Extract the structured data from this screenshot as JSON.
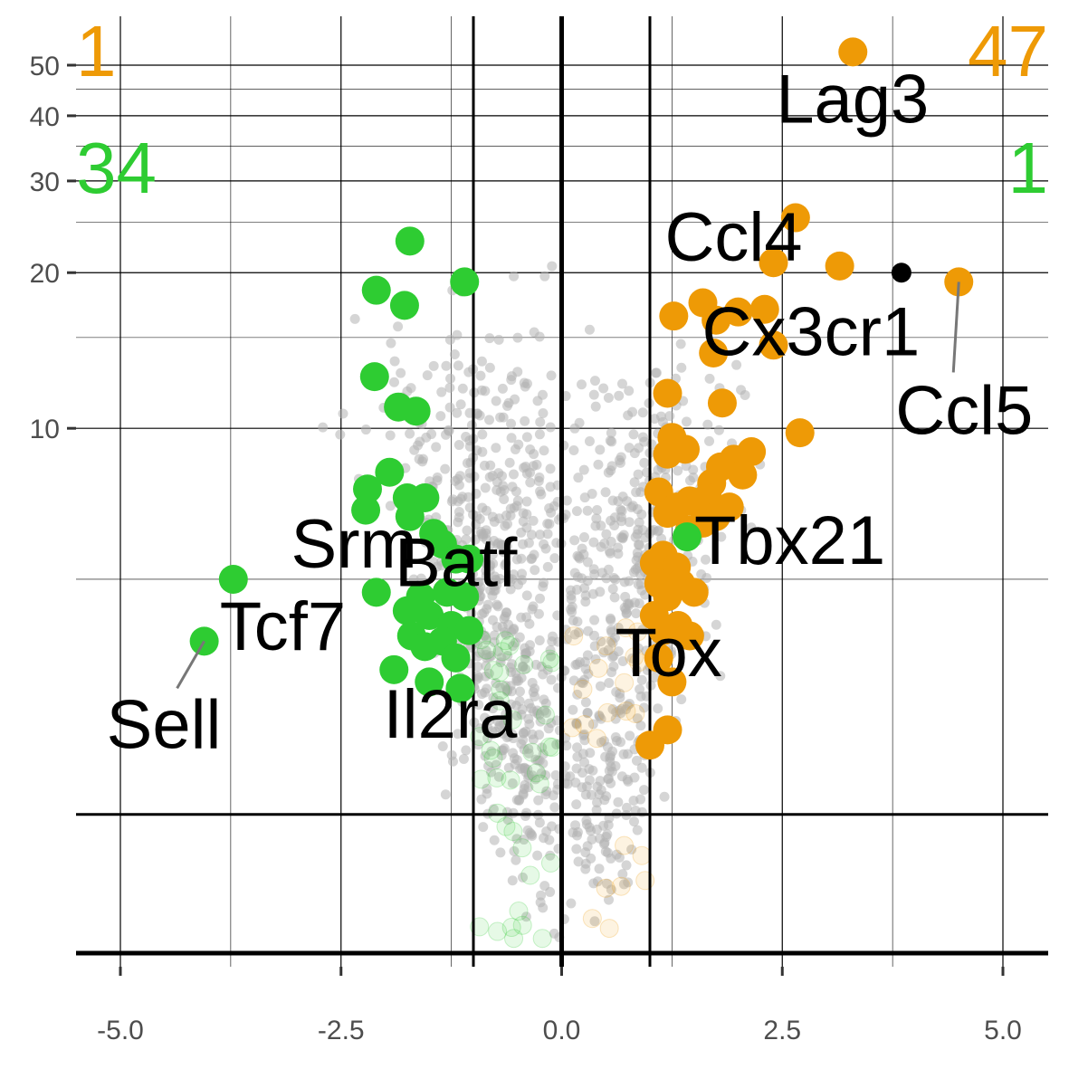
{
  "colors": {
    "up": "#ee9a06",
    "down": "#2ecc32",
    "background": "#b3b3b3",
    "highlight": "#000000",
    "axis_text": "#4d4d4d",
    "grid": "#000000"
  },
  "chart_data": {
    "type": "scatter",
    "title": "",
    "xlabel": "",
    "ylabel": "",
    "x_scale": "linear",
    "y_scale": "pseudo-log (-log10 p)",
    "xlim": [
      -5.5,
      5.5
    ],
    "ylim": [
      0,
      54
    ],
    "x_ticks": [
      -5.0,
      -2.5,
      0.0,
      2.5,
      5.0
    ],
    "x_tick_labels": [
      "-5.0",
      "-2.5",
      "0.0",
      "2.5",
      "5.0"
    ],
    "y_ticks": [
      10,
      20,
      30,
      40,
      50
    ],
    "y_tick_labels": [
      "10",
      "20",
      "30",
      "40",
      "50"
    ],
    "thresholds": {
      "logfc": [
        -1,
        1
      ],
      "y": 1.3
    },
    "grid": true,
    "legend": "none",
    "counts": {
      "up_significant": "47",
      "up_nonsignificant": "1",
      "down_significant": "34",
      "down_nonsignificant": "1"
    },
    "series": [
      {
        "group": "up",
        "points": [
          [
            3.3,
            53
          ],
          [
            2.65,
            25.5
          ],
          [
            3.15,
            20.6
          ],
          [
            2.4,
            20.9
          ],
          [
            4.5,
            19.2
          ],
          [
            1.6,
            17.5
          ],
          [
            2.3,
            17.0
          ],
          [
            1.27,
            16.5
          ],
          [
            2.0,
            16.8
          ],
          [
            1.75,
            16.2
          ],
          [
            2.4,
            14.5
          ],
          [
            1.72,
            14.0
          ],
          [
            1.2,
            11.7
          ],
          [
            1.82,
            11.2
          ],
          [
            2.7,
            9.8
          ],
          [
            1.25,
            9.6
          ],
          [
            1.4,
            9.1
          ],
          [
            2.15,
            9.0
          ],
          [
            1.2,
            8.9
          ],
          [
            1.95,
            8.7
          ],
          [
            1.8,
            8.4
          ],
          [
            2.05,
            8.1
          ],
          [
            1.7,
            7.8
          ],
          [
            1.1,
            7.5
          ],
          [
            1.45,
            7.2
          ],
          [
            1.65,
            7.3
          ],
          [
            1.3,
            7.0
          ],
          [
            1.9,
            7.0
          ],
          [
            1.2,
            6.8
          ],
          [
            1.75,
            6.7
          ],
          [
            1.6,
            6.5
          ],
          [
            1.45,
            6.3
          ],
          [
            1.05,
            5.4
          ],
          [
            1.15,
            5.6
          ],
          [
            1.3,
            5.3
          ],
          [
            1.1,
            4.9
          ],
          [
            1.35,
            4.9
          ],
          [
            1.5,
            4.7
          ],
          [
            1.2,
            4.6
          ],
          [
            1.05,
            4.2
          ],
          [
            1.15,
            3.9
          ],
          [
            1.32,
            4.0
          ],
          [
            1.45,
            3.8
          ],
          [
            1.1,
            3.4
          ],
          [
            1.25,
            3.0
          ],
          [
            1.2,
            2.3
          ],
          [
            1.0,
            2.1
          ]
        ]
      },
      {
        "group": "down",
        "points": [
          [
            -1.72,
            23.0
          ],
          [
            -1.1,
            19.2
          ],
          [
            -2.1,
            18.5
          ],
          [
            -1.78,
            17.3
          ],
          [
            -2.12,
            12.6
          ],
          [
            -1.85,
            11.0
          ],
          [
            -1.65,
            10.8
          ],
          [
            -1.95,
            8.2
          ],
          [
            -2.2,
            7.6
          ],
          [
            -1.75,
            7.3
          ],
          [
            -1.55,
            7.3
          ],
          [
            -2.22,
            6.9
          ],
          [
            -1.72,
            6.7
          ],
          [
            -1.45,
            6.2
          ],
          [
            -1.35,
            5.9
          ],
          [
            -1.2,
            5.5
          ],
          [
            -1.05,
            5.5
          ],
          [
            -2.1,
            4.7
          ],
          [
            -1.6,
            4.6
          ],
          [
            -1.3,
            4.7
          ],
          [
            -1.1,
            4.6
          ],
          [
            -1.75,
            4.3
          ],
          [
            -1.5,
            4.2
          ],
          [
            -1.25,
            4.0
          ],
          [
            -1.7,
            3.8
          ],
          [
            -1.05,
            3.9
          ],
          [
            -1.35,
            3.7
          ],
          [
            -1.55,
            3.6
          ],
          [
            -1.2,
            3.4
          ],
          [
            -1.9,
            3.2
          ],
          [
            -1.5,
            3.0
          ],
          [
            -1.15,
            2.9
          ],
          [
            -3.72,
            5.0
          ],
          [
            -4.05,
            3.7
          ]
        ]
      },
      {
        "group": "up-nonsig",
        "points": [
          [
            1.42,
            6.1
          ]
        ]
      },
      {
        "group": "highlight",
        "points": [
          [
            3.85,
            20.0
          ]
        ]
      }
    ],
    "labels": [
      {
        "gene": "Lag3",
        "x": 3.3,
        "y": 53
      },
      {
        "gene": "Ccl4",
        "x": 2.4,
        "y": 20.9
      },
      {
        "gene": "Cx3cr1",
        "x": 2.0,
        "y": 16.8
      },
      {
        "gene": "Ccl5",
        "x": 4.5,
        "y": 19.2
      },
      {
        "gene": "Tbx21",
        "x": 1.42,
        "y": 6.1
      },
      {
        "gene": "Tox",
        "x": 1.2,
        "y": 3.4
      },
      {
        "gene": "Batf",
        "x": -1.05,
        "y": 5.5
      },
      {
        "gene": "Srm",
        "x": -1.2,
        "y": 6.1
      },
      {
        "gene": "Il2ra",
        "x": -1.2,
        "y": 3.4
      },
      {
        "gene": "Tcf7",
        "x": -3.72,
        "y": 5.0
      },
      {
        "gene": "Sell",
        "x": -4.05,
        "y": 3.7
      }
    ]
  }
}
